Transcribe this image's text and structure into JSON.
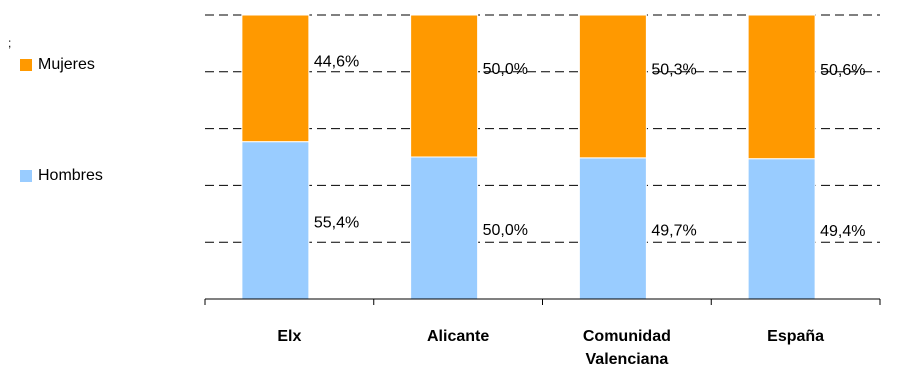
{
  "chart_data": {
    "type": "bar",
    "stacked": true,
    "percent_stacked": true,
    "categories": [
      "Elx",
      "Alicante",
      "Comunidad Valenciana",
      "España"
    ],
    "category_lines": [
      [
        "Elx"
      ],
      [
        "Alicante"
      ],
      [
        "Comunidad",
        "Valenciana"
      ],
      [
        "España"
      ]
    ],
    "series": [
      {
        "name": "Hombres",
        "values": [
          55.4,
          50.0,
          49.7,
          49.4
        ],
        "labels": [
          "55,4%",
          "50,0%",
          "49,7%",
          "49,4%"
        ],
        "color": "#99CCFF"
      },
      {
        "name": "Mujeres",
        "values": [
          44.6,
          50.0,
          50.3,
          50.6
        ],
        "labels": [
          "44,6%",
          "50,0%",
          "50,3%",
          "50,6%"
        ],
        "color": "#FF9900"
      }
    ],
    "ylim": [
      0,
      100
    ],
    "grid": "dashed horizontal",
    "legend_position": "left"
  },
  "stray_text": ";"
}
